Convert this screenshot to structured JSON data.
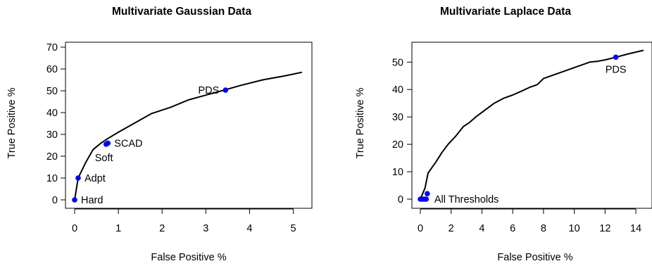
{
  "chart_data": [
    {
      "type": "line",
      "title": "Multivariate Gaussian Data",
      "xlabel": "False Positive %",
      "ylabel": "True Positive %",
      "xlim": [
        0,
        5.2
      ],
      "ylim": [
        0,
        70
      ],
      "x_ticks": [
        0,
        1,
        2,
        3,
        4,
        5
      ],
      "y_ticks": [
        0,
        10,
        20,
        30,
        40,
        50,
        60,
        70
      ],
      "grid": false,
      "line_color": "#000000",
      "point_color": "#0000ff",
      "series": [
        {
          "x": [
            0,
            0.08,
            0.25,
            0.42,
            0.6,
            0.75,
            1.0,
            1.4,
            1.75,
            2.2,
            2.6,
            3.0,
            3.4,
            3.8,
            4.3,
            4.8,
            5.2
          ],
          "y": [
            0,
            10,
            17,
            23,
            26,
            28,
            31,
            35.5,
            39.5,
            42.5,
            45.8,
            48,
            50.2,
            52.5,
            55,
            56.8,
            58.5
          ]
        }
      ],
      "points": [
        {
          "x": 0.0,
          "y": 0.0,
          "label": "Hard",
          "anchor": "right"
        },
        {
          "x": 0.08,
          "y": 10.0,
          "label": "Adpt",
          "anchor": "right"
        },
        {
          "x": 0.72,
          "y": 25.5,
          "label": "Soft",
          "anchor": "below-left"
        },
        {
          "x": 0.76,
          "y": 26.0,
          "label": "SCAD",
          "anchor": "right"
        },
        {
          "x": 3.45,
          "y": 50.3,
          "label": "PDS",
          "anchor": "left"
        }
      ]
    },
    {
      "type": "line",
      "title": "Multivariate Laplace Data",
      "xlabel": "False Positive %",
      "ylabel": "True Positive %",
      "xlim": [
        0,
        14.5
      ],
      "ylim": [
        0,
        57
      ],
      "x_ticks": [
        0,
        2,
        4,
        6,
        8,
        10,
        12,
        14
      ],
      "y_ticks": [
        0,
        10,
        20,
        30,
        40,
        50
      ],
      "grid": false,
      "line_color": "#000000",
      "point_color": "#0000ff",
      "series": [
        {
          "x": [
            0,
            0.15,
            0.3,
            0.5,
            1.0,
            1.4,
            1.8,
            2.3,
            2.8,
            3.2,
            3.6,
            4.2,
            4.8,
            5.4,
            6.0,
            6.6,
            7.1,
            7.6,
            8.0,
            8.5,
            9.0,
            9.5,
            10.0,
            10.5,
            11.0,
            11.5,
            12.0,
            12.7,
            13.5,
            14.5
          ],
          "y": [
            0,
            2,
            4,
            9.5,
            13.5,
            17,
            20,
            23,
            26.5,
            28,
            30,
            32.5,
            35,
            36.8,
            38,
            39.5,
            40.8,
            41.8,
            44,
            45,
            46,
            47,
            48,
            49,
            50,
            50.3,
            50.8,
            51.8,
            53,
            54.3
          ]
        }
      ],
      "points": [
        {
          "x": 0.0,
          "y": 0.0
        },
        {
          "x": 0.15,
          "y": 0.0
        },
        {
          "x": 0.3,
          "y": 0.0
        },
        {
          "x": 0.38,
          "y": 0.0
        },
        {
          "x": 0.45,
          "y": 2.0
        },
        {
          "x": 12.7,
          "y": 51.8
        }
      ],
      "annotations": [
        {
          "text": "All Thresholds",
          "x": 0.45,
          "y": 0.0,
          "anchor": "right"
        },
        {
          "text": "PDS",
          "x": 12.7,
          "y": 51.8,
          "anchor": "below"
        }
      ]
    }
  ]
}
